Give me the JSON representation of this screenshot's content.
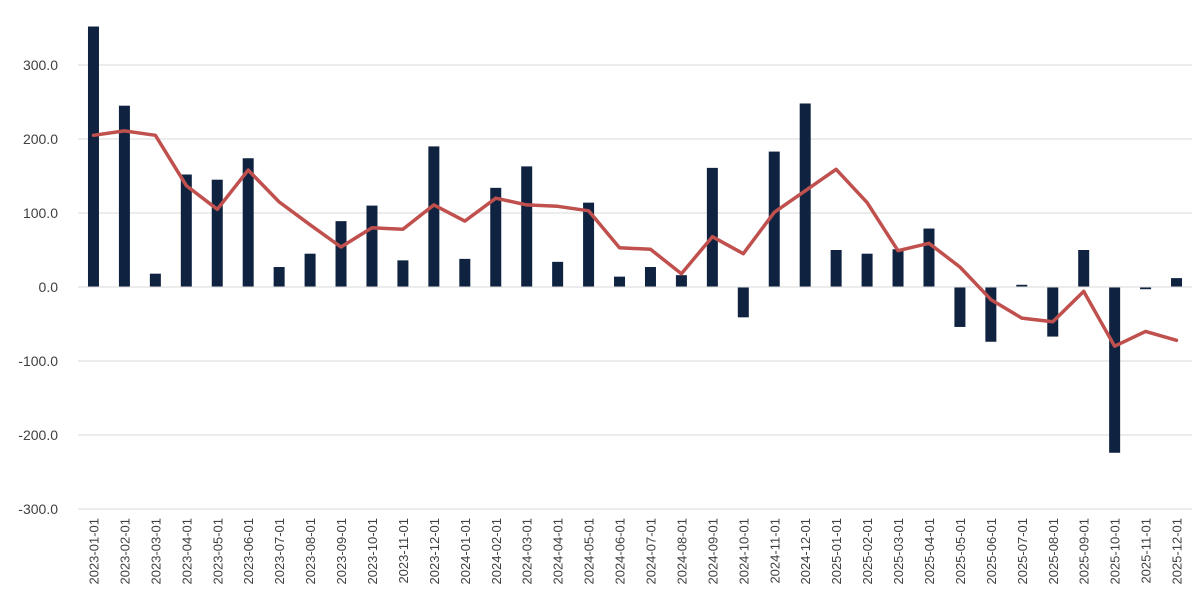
{
  "chart_data": {
    "type": "bar",
    "title": "",
    "xlabel": "",
    "ylabel": "",
    "ylim": [
      -300,
      350
    ],
    "yticks": [
      -300,
      -200,
      -100,
      0,
      100,
      200,
      300
    ],
    "ytick_labels": [
      "-300.0",
      "-200.0",
      "-100.0",
      "0.0",
      "100.0",
      "200.0",
      "300.0"
    ],
    "grid": true,
    "legend": "none",
    "categories": [
      "2023-01-01",
      "2023-02-01",
      "2023-03-01",
      "2023-04-01",
      "2023-05-01",
      "2023-06-01",
      "2023-07-01",
      "2023-08-01",
      "2023-09-01",
      "2023-10-01",
      "2023-11-01",
      "2023-12-01",
      "2024-01-01",
      "2024-02-01",
      "2024-03-01",
      "2024-04-01",
      "2024-05-01",
      "2024-06-01",
      "2024-07-01",
      "2024-08-01",
      "2024-09-01",
      "2024-10-01",
      "2024-11-01",
      "2024-12-01",
      "2025-01-01",
      "2025-02-01",
      "2025-03-01",
      "2025-04-01",
      "2025-05-01",
      "2025-06-01",
      "2025-07-01",
      "2025-08-01",
      "2025-09-01",
      "2025-10-01",
      "2025-11-01",
      "2025-12-01"
    ],
    "series": [
      {
        "type": "bar",
        "color": "#0f2341",
        "values": [
          352,
          245,
          18,
          152,
          145,
          174,
          27,
          45,
          89,
          110,
          36,
          190,
          38,
          134,
          163,
          34,
          114,
          14,
          27,
          16,
          161,
          -41,
          183,
          248,
          50,
          45,
          51,
          79,
          -54,
          -74,
          3,
          -67,
          50,
          -224,
          -3,
          12
        ]
      },
      {
        "type": "line",
        "color": "#c0504d",
        "values": [
          205,
          211,
          205,
          137,
          105,
          158,
          115,
          84,
          54,
          80,
          78,
          111,
          89,
          120,
          111,
          109,
          103,
          53,
          51,
          18,
          68,
          45,
          101,
          130,
          159,
          114,
          49,
          59,
          27,
          -17,
          -42,
          -47,
          -6,
          -80,
          -60,
          -72
        ]
      }
    ]
  }
}
